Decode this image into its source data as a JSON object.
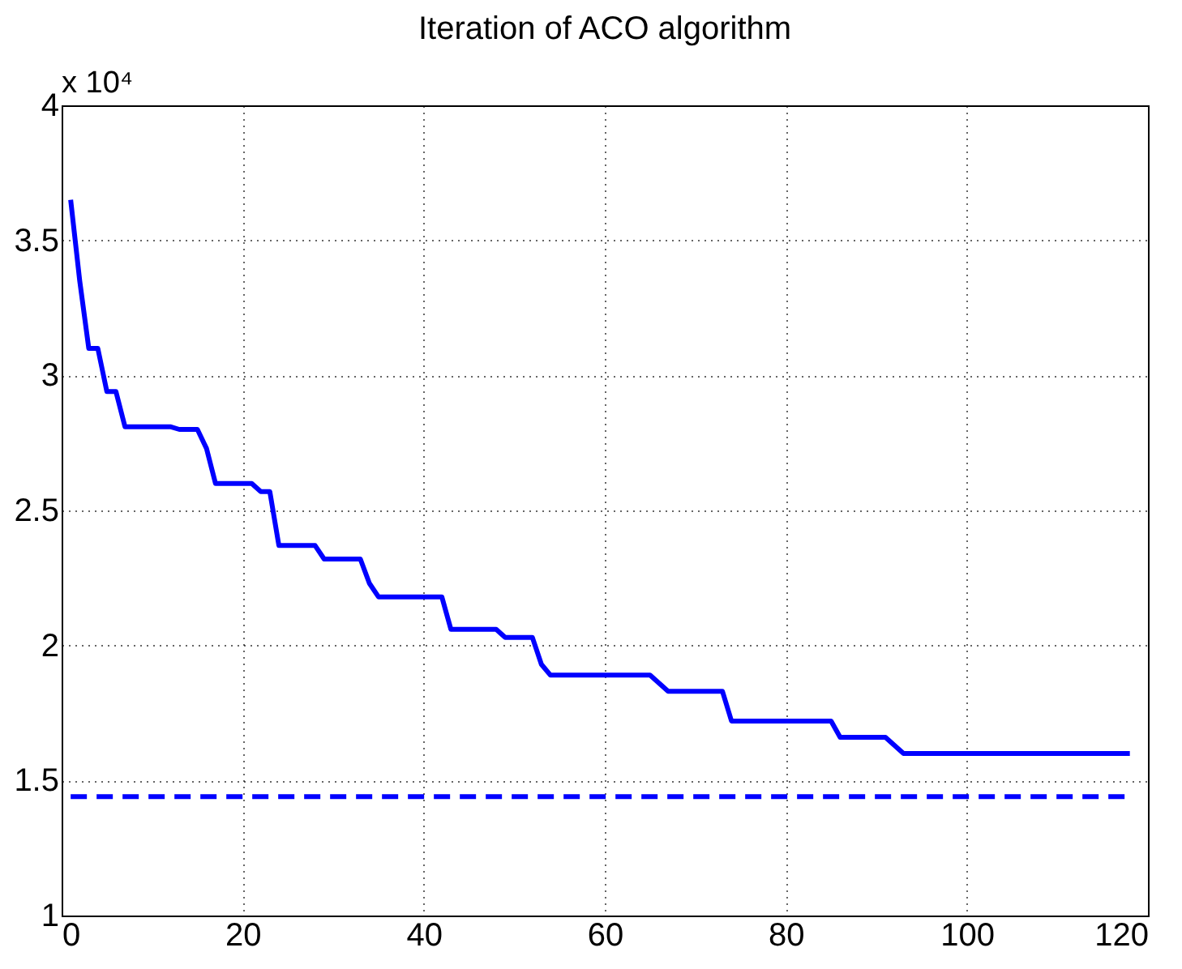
{
  "chart_data": {
    "type": "line",
    "title": "Iteration of ACO algorithm",
    "annotations": [
      "x 10⁴"
    ],
    "xlim": [
      0,
      120
    ],
    "xticks": [
      0,
      20,
      40,
      60,
      80,
      100,
      120
    ],
    "ylim": [
      1,
      4
    ],
    "yticks": [
      1,
      1.5,
      2,
      2.5,
      3,
      3.5,
      4
    ],
    "grid": true,
    "marker": "none",
    "series": [
      {
        "color": "#0000ff",
        "line_style": "solid",
        "x": [
          1,
          2,
          3,
          4,
          5,
          6,
          7,
          12,
          13,
          15,
          16,
          17,
          21,
          22,
          23,
          24,
          28,
          29,
          33,
          34,
          35,
          42,
          43,
          45,
          48,
          49,
          52,
          53,
          54,
          65,
          66,
          67,
          73,
          74,
          85,
          86,
          91,
          93,
          118
        ],
        "values": [
          3.65,
          3.35,
          3.1,
          3.1,
          2.94,
          2.94,
          2.81,
          2.81,
          2.8,
          2.8,
          2.73,
          2.6,
          2.6,
          2.57,
          2.57,
          2.37,
          2.37,
          2.32,
          2.32,
          2.23,
          2.18,
          2.18,
          2.06,
          2.06,
          2.06,
          2.03,
          2.03,
          1.93,
          1.89,
          1.89,
          1.86,
          1.83,
          1.83,
          1.72,
          1.72,
          1.66,
          1.66,
          1.6,
          1.6
        ]
      },
      {
        "color": "#0000ff",
        "line_style": "dashed",
        "x": [
          1,
          118
        ],
        "values": [
          1.44,
          1.44
        ]
      }
    ]
  }
}
